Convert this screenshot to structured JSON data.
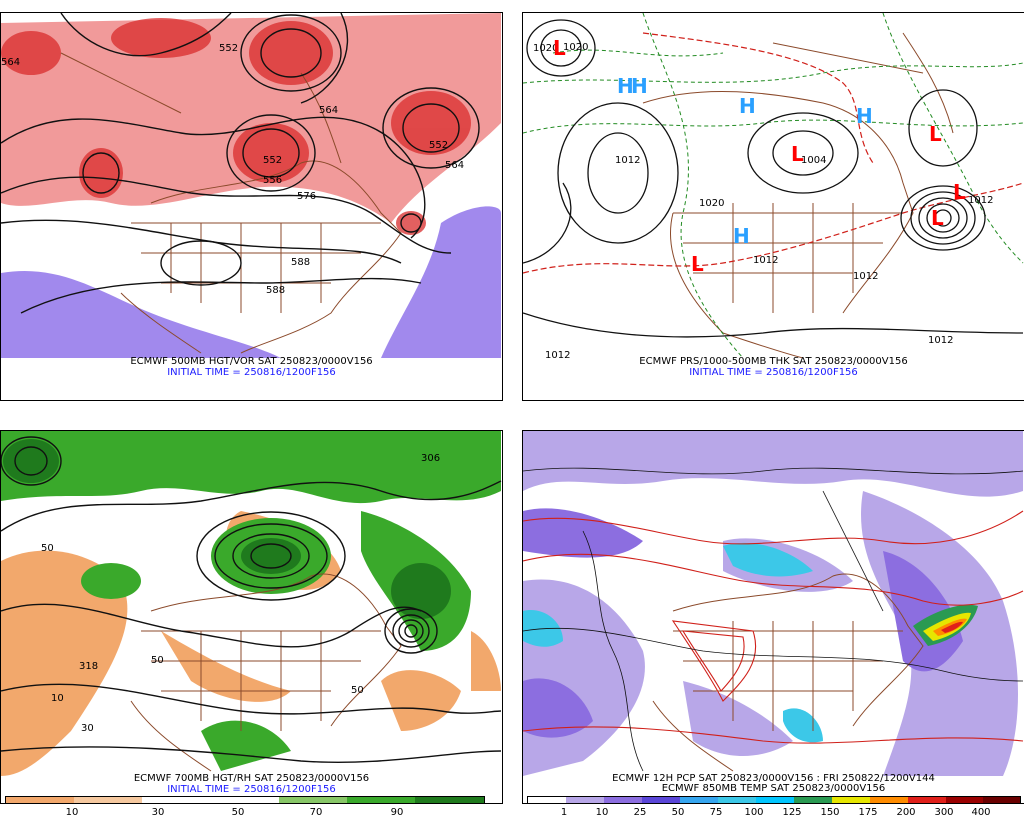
{
  "panels": [
    {
      "id": "p500",
      "caption1": "ECMWF 500MB HGT/VOR SAT 250823/0000V156",
      "caption2": "INITIAL TIME = 250816/1200F156",
      "contour_labels": [
        "564",
        "552",
        "564",
        "552",
        "556",
        "576",
        "552",
        "564",
        "588",
        "588"
      ]
    },
    {
      "id": "pmsl",
      "caption1": "ECMWF PRS/1000-500MB THK SAT 250823/0000V156",
      "caption2": "INITIAL TIME = 250816/1200F156",
      "contour_labels": [
        "1020",
        "1020",
        "1004",
        "1012",
        "1012",
        "1012",
        "1012",
        "1020",
        "1012",
        "1012"
      ],
      "lows": [
        "L",
        "L",
        "L",
        "L",
        "L",
        "L"
      ],
      "highs": [
        "H",
        "H",
        "H",
        "H",
        "H"
      ]
    },
    {
      "id": "p700",
      "caption1": "ECMWF 700MB HGT/RH SAT 250823/0000V156",
      "caption2": "INITIAL TIME = 250816/1200F156",
      "contour_labels": [
        "306",
        "318",
        "50",
        "50",
        "10",
        "50",
        "30"
      ],
      "colorbar_ticks": [
        "10",
        "30",
        "50",
        "70",
        "90"
      ],
      "colorbar_colors": [
        "#f2a86c",
        "#f6c9a0",
        "#ffffff",
        "#ffffff",
        "#88c768",
        "#3aa92b",
        "#1f7a1d"
      ]
    },
    {
      "id": "ppcp",
      "caption1": "ECMWF 12H PCP SAT 250823/0000V156 : FRI 250822/1200V144",
      "caption2": "ECMWF 850MB TEMP SAT 250823/0000V156",
      "colorbar_ticks": [
        "1",
        "10",
        "25",
        "50",
        "75",
        "100",
        "125",
        "150",
        "175",
        "200",
        "300",
        "400"
      ],
      "colorbar_colors": [
        "#ffffff",
        "#b8a7e8",
        "#8c6ee0",
        "#5a46d8",
        "#36a6f0",
        "#3cc8e8",
        "#00c6ff",
        "#2a9a52",
        "#e6e600",
        "#ff8c00",
        "#e0201a",
        "#9a0000",
        "#6a0000"
      ]
    }
  ],
  "colors": {
    "state_lines": "#8b4a2b",
    "contour": "#111111",
    "vort_red": "#e0302a",
    "vort_purple": "#7a5ae8",
    "thk_red": "#d0201a",
    "thk_green": "#228b22",
    "low_letter": "#ff0000",
    "high_letter": "#2aa0ff",
    "caption_blue": "#1a1aff"
  }
}
